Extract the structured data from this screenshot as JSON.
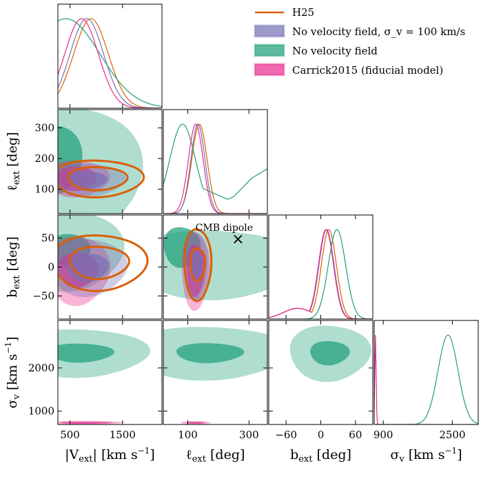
{
  "chart_data": {
    "type": "corner",
    "colors": {
      "H25": "#d95f02",
      "NoVelSigma100": "#7570b3",
      "NoVel": "#1b9e77",
      "Carrick2015": "#e7298a"
    },
    "parameters": [
      {
        "key": "vext",
        "xlabel": "|V_ext|  [km s^-1]",
        "ylabel": "",
        "range": [
          270,
          2250
        ],
        "ticks": [
          500,
          1500
        ],
        "tick_labels": [
          "500",
          "1500"
        ]
      },
      {
        "key": "lext",
        "xlabel": "ℓ_ext  [deg]",
        "ylabel": "ℓ_ext  [deg]",
        "range": [
          20,
          360
        ],
        "ticks": [
          100,
          200,
          300
        ],
        "tick_labels": [
          "100",
          "200",
          "300"
        ],
        "xticks": [
          100,
          300
        ],
        "xtick_labels": [
          "100",
          "300"
        ]
      },
      {
        "key": "bext",
        "xlabel": "b_ext  [deg]",
        "ylabel": "b_ext  [deg]",
        "range": [
          -90,
          90
        ],
        "ticks": [
          -60,
          0,
          60
        ],
        "tick_labels": [
          "−60",
          "0",
          "60"
        ],
        "yticks": [
          -50,
          0,
          50
        ],
        "ytick_labels": [
          "−50",
          "0",
          "50"
        ]
      },
      {
        "key": "sigma",
        "xlabel": "σ_v  [km s^-1]",
        "ylabel": "σ_v  [km s^-1]",
        "range": [
          690,
          3100
        ],
        "ticks": [
          900,
          2500
        ],
        "tick_labels": [
          "900",
          "2500"
        ],
        "yticks": [
          1000,
          2000
        ],
        "ytick_labels": [
          "1000",
          "2000"
        ]
      }
    ],
    "legend": {
      "position": "top-right",
      "entries": [
        {
          "name": "H25",
          "style": "line",
          "color": "#d95f02"
        },
        {
          "name": "No velocity field, σ_v = 100 km/s",
          "style": "patch",
          "color": "#7570b3"
        },
        {
          "name": "No velocity field",
          "style": "patch",
          "color": "#1b9e77"
        },
        {
          "name": "Carrick2015 (fiducial model)",
          "style": "patch",
          "color": "#e7298a"
        }
      ]
    },
    "annotations": [
      {
        "text": "CMB dipole",
        "marker": "×",
        "l": 264,
        "b": 48
      }
    ],
    "marginals": [
      {
        "param": "vext",
        "series": [
          {
            "name": "H25",
            "peak": 900,
            "width": 330
          },
          {
            "name": "No velocity field, σ_v = 100 km/s",
            "peak": 820,
            "width": 320
          },
          {
            "name": "No velocity field",
            "peak": 420,
            "width": 650
          },
          {
            "name": "Carrick2015",
            "peak": 720,
            "width": 320
          }
        ]
      },
      {
        "param": "lext",
        "series": [
          {
            "name": "H25",
            "peak": 138,
            "width": 25
          },
          {
            "name": "No velocity field, σ_v = 100 km/s",
            "peak": 133,
            "width": 23
          },
          {
            "name": "No velocity field",
            "peak": 83,
            "width": 42
          },
          {
            "name": "Carrick2015",
            "peak": 126,
            "width": 24
          }
        ]
      },
      {
        "param": "bext",
        "series": [
          {
            "name": "H25",
            "peak": 14,
            "width": 13
          },
          {
            "name": "No velocity field, σ_v = 100 km/s",
            "peak": 10,
            "width": 13
          },
          {
            "name": "No velocity field",
            "peak": 28,
            "width": 15
          },
          {
            "name": "Carrick2015",
            "peak": 9,
            "width": 13
          }
        ]
      },
      {
        "param": "sigma",
        "series": [
          {
            "name": "No velocity field",
            "peak": 2400,
            "width": 230
          },
          {
            "name": "Carrick2015",
            "peak": 720,
            "width": 15
          }
        ]
      }
    ],
    "contours": [
      {
        "x": "vext",
        "y": "lext",
        "series": [
          {
            "name": "No velocity field",
            "c": [
              300,
              200
            ],
            "r1": [
              420,
              110
            ],
            "r2": [
              1150,
              210
            ],
            "r2_c": [
              700,
              160
            ]
          },
          {
            "name": "Carrick2015",
            "c": [
              620,
              135
            ],
            "r1": [
              380,
              40
            ],
            "r2": [
              620,
              60
            ]
          },
          {
            "name": "No velocity field, σ_v = 100 km/s",
            "c": [
              820,
              130
            ],
            "r1": [
              380,
              30
            ],
            "r2": [
              720,
              55
            ]
          },
          {
            "name": "H25",
            "c": [
              1020,
              135
            ],
            "r1": [
              560,
              38
            ],
            "r2": [
              860,
              60
            ],
            "line": true
          }
        ]
      },
      {
        "x": "vext",
        "y": "bext",
        "series": [
          {
            "name": "No velocity field",
            "c": [
              500,
              30
            ],
            "r1": [
              380,
              28
            ],
            "r2": [
              1000,
              70
            ]
          },
          {
            "name": "Carrick2015",
            "c": [
              650,
              -5
            ],
            "r1": [
              380,
              30
            ],
            "r2": [
              600,
              60
            ]
          },
          {
            "name": "No velocity field, σ_v = 100 km/s",
            "c": [
              830,
              0
            ],
            "r1": [
              400,
              25
            ],
            "r2": [
              740,
              50
            ]
          },
          {
            "name": "H25",
            "c": [
              1050,
              8
            ],
            "r1": [
              560,
              28
            ],
            "r2": [
              900,
              48
            ],
            "line": true
          }
        ]
      },
      {
        "x": "lext",
        "y": "bext",
        "series": [
          {
            "name": "No velocity field",
            "c": [
              80,
              35
            ],
            "r1": [
              60,
              35
            ],
            "r2": [
              280,
              60
            ],
            "r2_c": [
              190,
              5
            ]
          },
          {
            "name": "Carrick2015",
            "c": [
              125,
              -5
            ],
            "r1": [
              30,
              45
            ],
            "r2": [
              46,
              68
            ]
          },
          {
            "name": "No velocity field, σ_v = 100 km/s",
            "c": [
              128,
              3
            ],
            "r1": [
              20,
              25
            ],
            "r2": [
              36,
              58
            ]
          },
          {
            "name": "H25",
            "c": [
              132,
              5
            ],
            "r1": [
              24,
              28
            ],
            "r2": [
              44,
              62
            ],
            "line": true
          }
        ]
      },
      {
        "x": "vext",
        "y": "sigma",
        "series": [
          {
            "name": "No velocity field",
            "c": [
              700,
              2350
            ],
            "r1": [
              620,
              220
            ],
            "r2": [
              1280,
              560
            ]
          },
          {
            "name": "Carrick2015",
            "c": [
              800,
              730
            ],
            "r1": [
              500,
              25
            ],
            "r2": [
              700,
              45
            ]
          }
        ]
      },
      {
        "x": "lext",
        "y": "sigma",
        "series": [
          {
            "name": "No velocity field",
            "c": [
              170,
              2350
            ],
            "r1": [
              110,
              230
            ],
            "r2": [
              260,
              620
            ]
          },
          {
            "name": "Carrick2015",
            "c": [
              125,
              730
            ],
            "r1": [
              30,
              22
            ],
            "r2": [
              48,
              42
            ]
          }
        ]
      },
      {
        "x": "bext",
        "y": "sigma",
        "series": [
          {
            "name": "No velocity field",
            "c": [
              15,
              2350
            ],
            "r1": [
              34,
              280
            ],
            "r2": [
              70,
              650
            ]
          }
        ]
      }
    ]
  }
}
